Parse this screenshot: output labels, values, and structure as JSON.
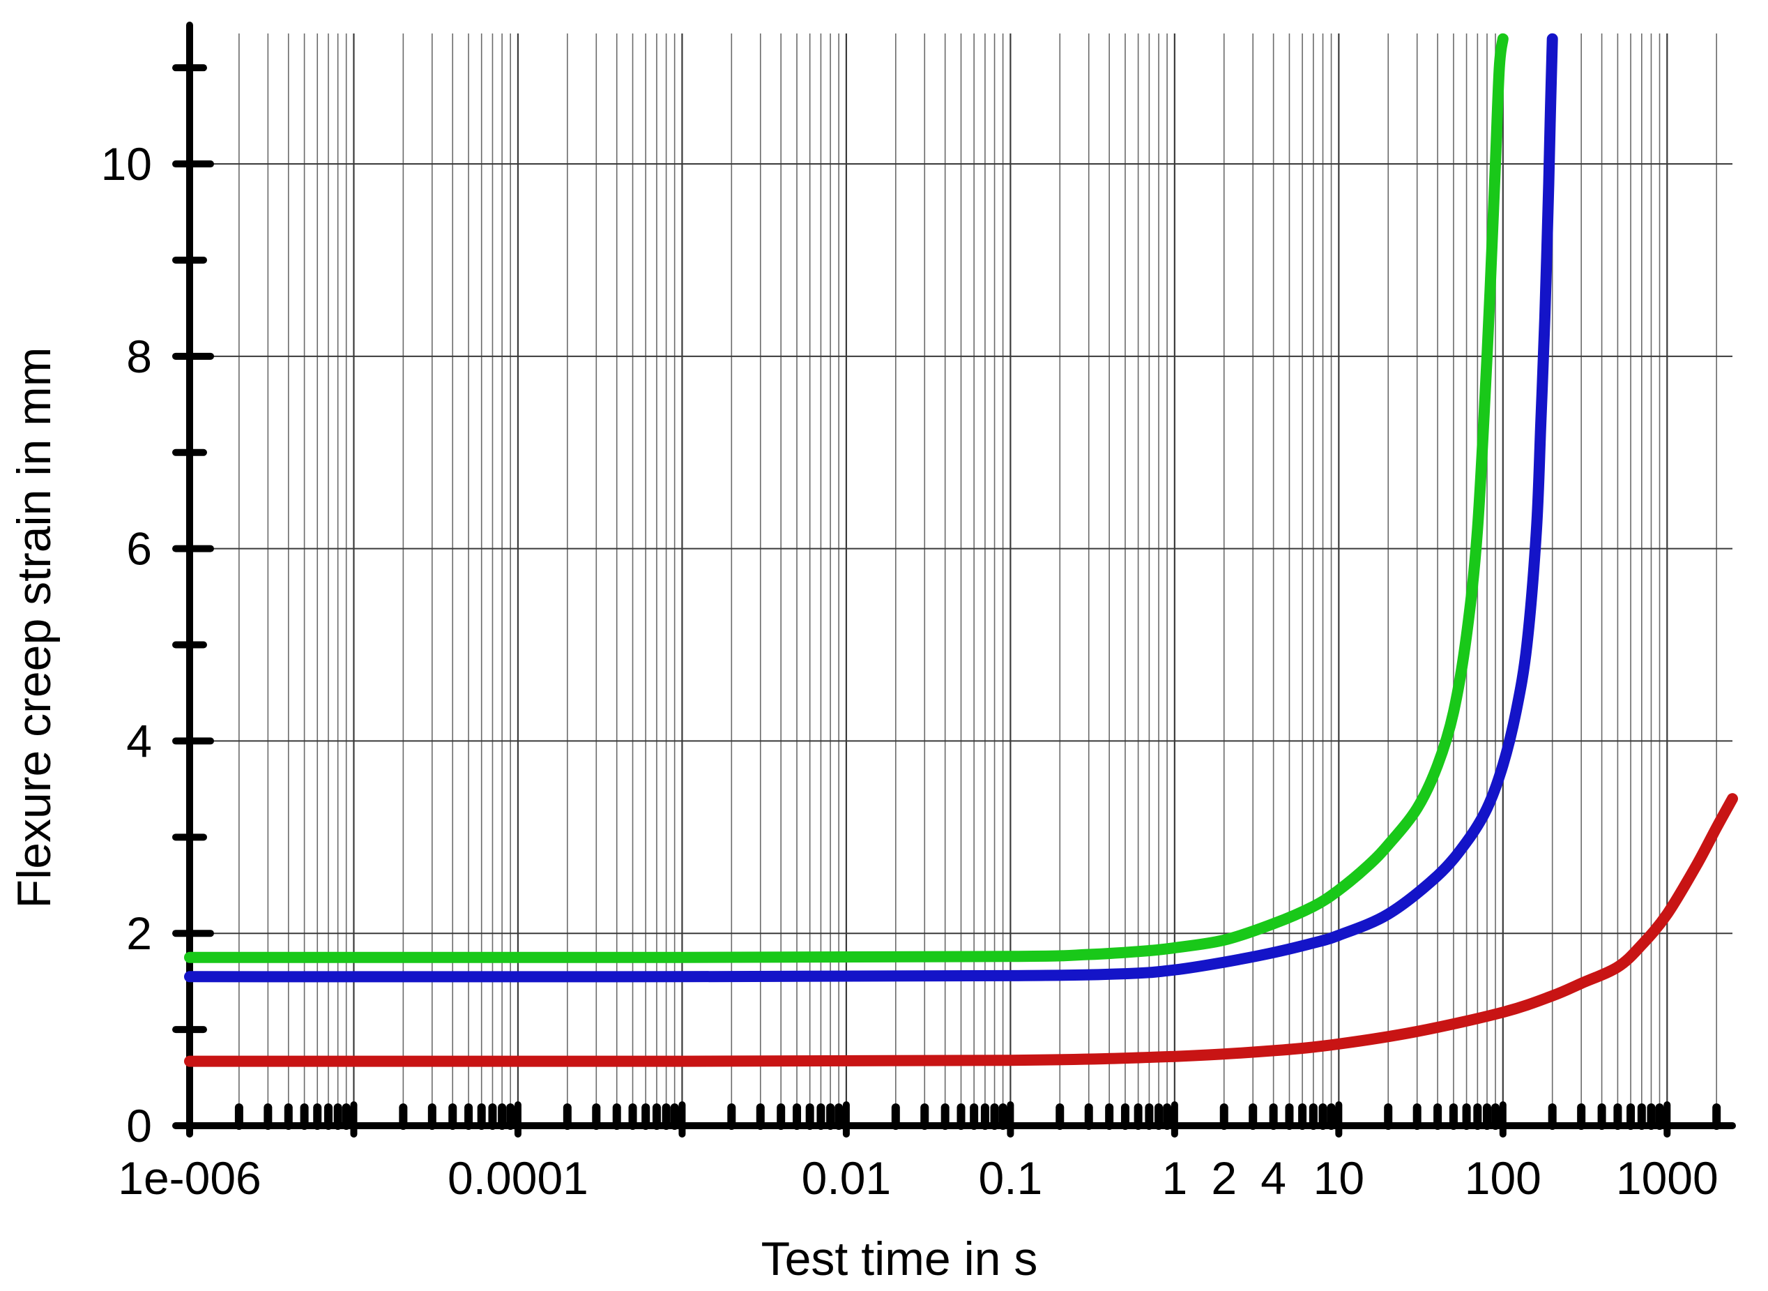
{
  "chart_data": {
    "type": "line",
    "title": "",
    "xlabel": "Test time in s",
    "ylabel": "Flexure creep strain in mm",
    "xscale": "log",
    "xlim": [
      1e-06,
      2500
    ],
    "ylim": [
      0,
      11.4
    ],
    "grid": true,
    "legend": "none",
    "x_ticks": [
      {
        "value": 1e-06,
        "label": "1e-006"
      },
      {
        "value": 0.0001,
        "label": "0.0001"
      },
      {
        "value": 0.01,
        "label": "0.01"
      },
      {
        "value": 0.1,
        "label": "0.1"
      },
      {
        "value": 1,
        "label": "1"
      },
      {
        "value": 2,
        "label": "2"
      },
      {
        "value": 4,
        "label": "4"
      },
      {
        "value": 10,
        "label": "10"
      },
      {
        "value": 100,
        "label": "100"
      },
      {
        "value": 1000,
        "label": "1000"
      }
    ],
    "y_ticks": [
      {
        "value": 0,
        "label": "0"
      },
      {
        "value": 2,
        "label": "2"
      },
      {
        "value": 4,
        "label": "4"
      },
      {
        "value": 6,
        "label": "6"
      },
      {
        "value": 8,
        "label": "8"
      },
      {
        "value": 10,
        "label": "10"
      }
    ],
    "series": [
      {
        "color": "#19c819",
        "x": [
          1e-06,
          0.001,
          0.1,
          0.3,
          0.7,
          1,
          2,
          4,
          7,
          10,
          15,
          20,
          30,
          40,
          50,
          60,
          70,
          80,
          85,
          90,
          95,
          100
        ],
        "y": [
          1.75,
          1.75,
          1.76,
          1.78,
          1.82,
          1.85,
          1.93,
          2.1,
          2.28,
          2.45,
          2.7,
          2.92,
          3.3,
          3.75,
          4.3,
          5.1,
          6.2,
          8.0,
          9.0,
          10.0,
          11.0,
          11.3
        ]
      },
      {
        "color": "#1414c8",
        "x": [
          1e-06,
          0.001,
          0.1,
          0.5,
          1,
          2,
          4,
          7,
          10,
          20,
          40,
          60,
          80,
          100,
          120,
          140,
          160,
          170,
          180,
          190,
          195,
          200
        ],
        "y": [
          1.55,
          1.55,
          1.56,
          1.58,
          1.62,
          1.7,
          1.8,
          1.9,
          1.98,
          2.2,
          2.6,
          2.95,
          3.3,
          3.75,
          4.3,
          5.0,
          6.2,
          7.3,
          8.4,
          9.8,
          10.6,
          11.3
        ]
      },
      {
        "color": "#c81414",
        "x": [
          1e-06,
          0.001,
          0.1,
          1,
          4,
          10,
          30,
          100,
          200,
          300,
          500,
          700,
          1000,
          1500,
          2000,
          2500
        ],
        "y": [
          0.67,
          0.67,
          0.68,
          0.72,
          0.78,
          0.85,
          0.98,
          1.18,
          1.35,
          1.48,
          1.65,
          1.88,
          2.2,
          2.7,
          3.1,
          3.4
        ]
      }
    ]
  }
}
